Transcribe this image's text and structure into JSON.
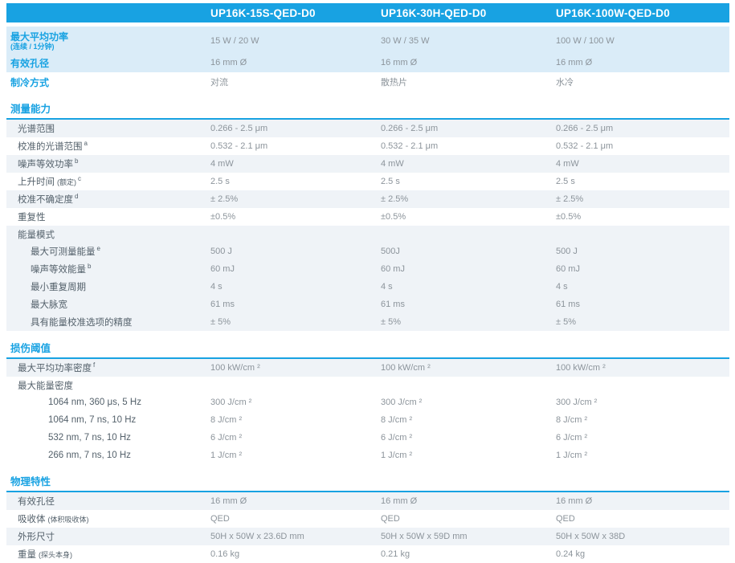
{
  "colors": {
    "accent": "#18A2E2",
    "row_light_blue": "#DAECF8",
    "row_pale": "#EFF3F7",
    "label_text": "#54616B",
    "value_text": "#8C949B"
  },
  "header": {
    "products": [
      "UP16K-15S-QED-D0",
      "UP16K-30H-QED-D0",
      "UP16K-100W-QED-D0"
    ]
  },
  "top_section": {
    "rows": [
      {
        "label": "最大平均功率",
        "note": "(连续 / 1分钟)",
        "note_block": true,
        "shade": "blue",
        "tall": true,
        "values": [
          "15 W / 20 W",
          "30 W / 35 W",
          "100 W / 100 W"
        ]
      },
      {
        "label": "有效孔径",
        "shade": "blue",
        "values": [
          "16 mm Ø",
          "16 mm Ø",
          "16 mm Ø"
        ]
      },
      {
        "label": "制冷方式",
        "shade": "white",
        "values": [
          "对流",
          "散热片",
          "水冷"
        ]
      }
    ]
  },
  "sections": [
    {
      "title": "测量能力",
      "rows": [
        {
          "label": "光谱范围",
          "shade": "pale",
          "values": [
            "0.266 - 2.5 μm",
            "0.266 - 2.5 μm",
            "0.266 - 2.5 μm"
          ]
        },
        {
          "label": "校准的光谱范围",
          "sup": "a",
          "shade": "white",
          "values": [
            "0.532 - 2.1 μm",
            "0.532 - 2.1 μm",
            "0.532 - 2.1 μm"
          ]
        },
        {
          "label": "噪声等效功率",
          "sup": "b",
          "shade": "pale",
          "values": [
            "4 mW",
            "4 mW",
            "4 mW"
          ]
        },
        {
          "label": "上升时间",
          "note": "(额定)",
          "sup": "c",
          "shade": "white",
          "values": [
            "2.5 s",
            "2.5 s",
            "2.5 s"
          ]
        },
        {
          "label": "校准不确定度",
          "sup": "d",
          "shade": "pale",
          "values": [
            "± 2.5%",
            "± 2.5%",
            "± 2.5%"
          ]
        },
        {
          "label": "重复性",
          "shade": "white",
          "values": [
            "±0.5%",
            "±0.5%",
            "±0.5%"
          ]
        },
        {
          "label": "能量模式",
          "shade": "pale",
          "group": true,
          "values": [
            "",
            "",
            ""
          ]
        },
        {
          "label": "最大可测量能量",
          "sup": "e",
          "indent": 1,
          "shade": "pale",
          "values": [
            "500 J",
            "500J",
            "500 J"
          ]
        },
        {
          "label": "噪声等效能量",
          "sup": "b",
          "indent": 1,
          "shade": "pale",
          "values": [
            "60 mJ",
            "60 mJ",
            "60 mJ"
          ]
        },
        {
          "label": "最小重复周期",
          "indent": 1,
          "shade": "pale",
          "values": [
            "4 s",
            "4 s",
            "4 s"
          ]
        },
        {
          "label": "最大脉宽",
          "indent": 1,
          "shade": "pale",
          "values": [
            "61 ms",
            "61 ms",
            "61 ms"
          ]
        },
        {
          "label": "具有能量校准选项的精度",
          "indent": 1,
          "shade": "pale",
          "values": [
            "± 5%",
            "± 5%",
            "± 5%"
          ]
        }
      ]
    },
    {
      "title": "损伤阈值",
      "rows": [
        {
          "label": "最大平均功率密度",
          "sup": "f",
          "shade": "pale",
          "tall": true,
          "values": [
            "100 kW/cm ²",
            "100 kW/cm ²",
            "100 kW/cm ²"
          ]
        },
        {
          "label": "最大能量密度",
          "shade": "white",
          "group": true,
          "values": [
            "",
            "",
            ""
          ]
        },
        {
          "label": "1064 nm, 360 μs, 5 Hz",
          "indent": 2,
          "shade": "white",
          "values": [
            "300 J/cm ²",
            "300 J/cm ²",
            "300 J/cm ²"
          ]
        },
        {
          "label": "1064 nm, 7 ns, 10 Hz",
          "indent": 2,
          "shade": "white",
          "values": [
            "8 J/cm ²",
            "8 J/cm ²",
            "8 J/cm ²"
          ]
        },
        {
          "label": "532 nm, 7 ns, 10 Hz",
          "indent": 2,
          "shade": "white",
          "values": [
            "6 J/cm ²",
            "6 J/cm ²",
            "6 J/cm ²"
          ]
        },
        {
          "label": "266 nm, 7 ns, 10 Hz",
          "indent": 2,
          "shade": "white",
          "values": [
            "1 J/cm ²",
            "1 J/cm ²",
            "1 J/cm ²"
          ]
        }
      ]
    },
    {
      "title": "物理特性",
      "rows": [
        {
          "label": "有效孔径",
          "shade": "pale",
          "values": [
            "16 mm Ø",
            "16 mm Ø",
            "16 mm Ø"
          ]
        },
        {
          "label": "吸收体",
          "note": "(体积吸收体)",
          "shade": "white",
          "values": [
            "QED",
            "QED",
            "QED"
          ]
        },
        {
          "label": "外形尺寸",
          "shade": "pale",
          "values": [
            "50H x 50W x 23.6D mm",
            "50H x 50W x 59D mm",
            "50H x 50W x 38D"
          ]
        },
        {
          "label": "重量",
          "note": "(探头本身)",
          "shade": "white",
          "values": [
            "0.16 kg",
            "0.21 kg",
            "0.24 kg"
          ]
        }
      ]
    }
  ]
}
